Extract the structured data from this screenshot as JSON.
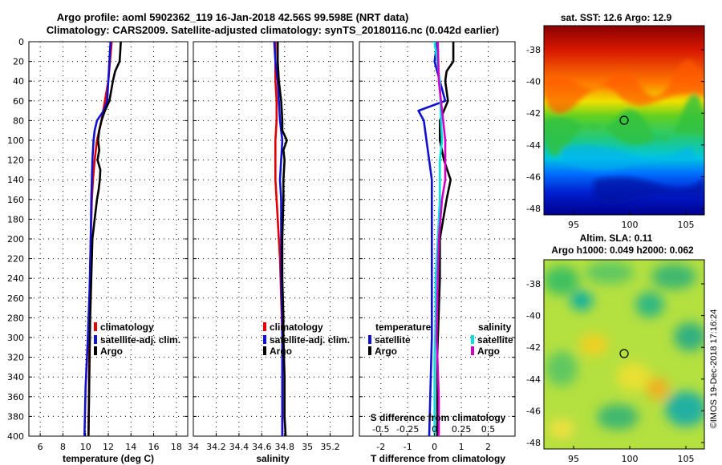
{
  "title_line1": "Argo profile: aoml 5902362_119 16-Jan-2018 42.56S 99.598E (NRT data)",
  "title_line2": "Climatology: CARS2009. Satellite-adjusted climatology: synTS_20180116.nc (0.042d earlier)",
  "watermark": "©IMOS 19-Dec-2018 17:16:24",
  "colors": {
    "red": "#e00000",
    "blue": "#1010d0",
    "black": "#000000",
    "cyan": "#00e0e0",
    "magenta": "#d000c8"
  },
  "chart_data": [
    {
      "type": "line",
      "id": "temperature",
      "xlabel": "temperature (deg C)",
      "ylim": [
        0,
        400
      ],
      "xlim": [
        5,
        19
      ],
      "xticks": [
        6,
        8,
        10,
        12,
        14,
        16,
        18
      ],
      "yticks": [
        0,
        20,
        40,
        60,
        80,
        100,
        120,
        140,
        160,
        180,
        200,
        220,
        240,
        260,
        280,
        300,
        320,
        340,
        360,
        380,
        400
      ],
      "legend": [
        "climatology",
        "satellite-adj. clim.",
        "Argo"
      ],
      "series": [
        {
          "name": "climatology",
          "color": "red",
          "depth": [
            0,
            20,
            40,
            60,
            80,
            100,
            120,
            140,
            160,
            200,
            250,
            300,
            350,
            400
          ],
          "values": [
            12.3,
            12.15,
            12.0,
            11.7,
            11.4,
            11.0,
            10.8,
            10.65,
            10.55,
            10.45,
            10.38,
            10.32,
            10.3,
            10.25
          ]
        },
        {
          "name": "satellite-adj. clim.",
          "color": "blue",
          "depth": [
            0,
            20,
            40,
            60,
            70,
            80,
            90,
            100,
            120,
            140,
            160,
            200,
            250,
            300,
            350,
            400
          ],
          "values": [
            12.2,
            12.1,
            12.0,
            11.9,
            11.6,
            11.0,
            10.8,
            10.7,
            10.6,
            10.55,
            10.5,
            10.45,
            10.35,
            10.2,
            10.0,
            9.9
          ]
        },
        {
          "name": "Argo",
          "color": "black",
          "depth": [
            0,
            10,
            20,
            30,
            40,
            60,
            70,
            80,
            90,
            100,
            110,
            120,
            130,
            140,
            150,
            160,
            180,
            200,
            240,
            280,
            320,
            360,
            400
          ],
          "values": [
            13.1,
            13.05,
            13.0,
            12.6,
            12.4,
            12.1,
            11.7,
            11.4,
            11.2,
            11.1,
            11.2,
            11.05,
            11.3,
            11.25,
            11.15,
            11.0,
            10.8,
            10.6,
            10.5,
            10.4,
            10.35,
            10.3,
            10.25
          ]
        }
      ]
    },
    {
      "type": "line",
      "id": "salinity",
      "xlabel": "salinity",
      "ylim": [
        0,
        400
      ],
      "xlim": [
        34.0,
        35.4
      ],
      "xticks": [
        "34",
        "34.2",
        "34.4",
        "34.6",
        "34.8",
        "35",
        "35.2"
      ],
      "legend": [
        "climatology",
        "satellite-adj. clim.",
        "Argo"
      ],
      "series": [
        {
          "name": "climatology",
          "color": "red",
          "depth": [
            0,
            40,
            60,
            80,
            100,
            120,
            140,
            160,
            180,
            200,
            220,
            260,
            300,
            340,
            380,
            400
          ],
          "values": [
            34.72,
            34.72,
            34.73,
            34.73,
            34.72,
            34.72,
            34.72,
            34.73,
            34.74,
            34.75,
            34.76,
            34.77,
            34.78,
            34.78,
            34.78,
            34.78
          ]
        },
        {
          "name": "satellite-adj. clim.",
          "color": "blue",
          "depth": [
            0,
            20,
            40,
            60,
            80,
            100,
            120,
            140,
            160,
            200,
            240,
            280,
            320,
            360,
            400
          ],
          "values": [
            34.71,
            34.72,
            34.74,
            34.75,
            34.76,
            34.78,
            34.77,
            34.76,
            34.77,
            34.77,
            34.77,
            34.78,
            34.78,
            34.78,
            34.78
          ]
        },
        {
          "name": "Argo",
          "color": "black",
          "depth": [
            0,
            20,
            40,
            60,
            80,
            90,
            100,
            110,
            120,
            140,
            160,
            200,
            240,
            280,
            300,
            340,
            380,
            400
          ],
          "values": [
            34.74,
            34.74,
            34.75,
            34.77,
            34.78,
            34.78,
            34.82,
            34.79,
            34.8,
            34.79,
            34.79,
            34.78,
            34.78,
            34.79,
            34.79,
            34.8,
            34.8,
            34.81
          ]
        }
      ]
    },
    {
      "type": "line",
      "id": "difference",
      "xlabel": "T difference from climatology",
      "top_xlabel": "S difference from climatology",
      "ylim": [
        0,
        400
      ],
      "xlim": [
        -2.8,
        3.0
      ],
      "xticks": [
        "-2",
        "-1",
        "0",
        "1",
        "2"
      ],
      "top_xticks": [
        "-0.5",
        "-0.25",
        "0",
        "0.25",
        "0.5"
      ],
      "legend_temperature_title": "temperature",
      "legend_salinity_title": "salinity",
      "legend_temperature": [
        "satellite",
        "Argo"
      ],
      "legend_salinity": [
        "satellite",
        "Argo"
      ],
      "series": [
        {
          "name": "T satellite",
          "color": "blue",
          "depth": [
            0,
            20,
            40,
            60,
            70,
            80,
            100,
            140,
            200,
            300,
            400
          ],
          "values": [
            0.1,
            0.0,
            0.2,
            0.4,
            -0.6,
            -0.4,
            -0.3,
            -0.1,
            -0.1,
            -0.1,
            -0.2
          ]
        },
        {
          "name": "T Argo",
          "color": "black",
          "depth": [
            0,
            20,
            30,
            40,
            60,
            80,
            100,
            120,
            140,
            160,
            200,
            240,
            280,
            320,
            360,
            400
          ],
          "values": [
            0.7,
            0.7,
            0.45,
            0.4,
            0.5,
            0.2,
            0.2,
            0.35,
            0.6,
            0.45,
            0.2,
            0.2,
            0.15,
            0.1,
            0.1,
            0.1
          ]
        },
        {
          "name": "S satellite",
          "color": "cyan",
          "depth": [
            0,
            40,
            80,
            100,
            120,
            160,
            200,
            240,
            280,
            320,
            400
          ],
          "values": [
            0.0,
            0.05,
            0.06,
            0.07,
            0.05,
            0.05,
            0.03,
            0.01,
            0.01,
            0.0,
            0.0
          ]
        },
        {
          "name": "S Argo",
          "color": "magenta",
          "depth": [
            0,
            40,
            80,
            100,
            120,
            140,
            160,
            200,
            240,
            300,
            360,
            400
          ],
          "values": [
            0.03,
            0.04,
            0.08,
            0.1,
            0.1,
            0.1,
            0.07,
            0.04,
            0.03,
            0.02,
            0.04,
            0.04
          ]
        }
      ]
    }
  ],
  "map_sst": {
    "title": "sat. SST: 12.6 Argo: 12.9",
    "lat_ticks": [
      "-38",
      "-40",
      "-42",
      "-44",
      "-46",
      "-48"
    ],
    "lon_ticks": [
      "95",
      "100",
      "105"
    ],
    "marker": {
      "lon": 99.6,
      "lat": -42.56
    }
  },
  "map_sla": {
    "title1": "Altim. SLA: 0.11",
    "title2": "Argo h1000: 0.049 h2000: 0.062",
    "lat_ticks": [
      "-38",
      "-40",
      "-42",
      "-44",
      "-46",
      "-48"
    ],
    "lon_ticks": [
      "95",
      "100",
      "105"
    ],
    "marker": {
      "lon": 99.6,
      "lat": -42.56
    }
  }
}
